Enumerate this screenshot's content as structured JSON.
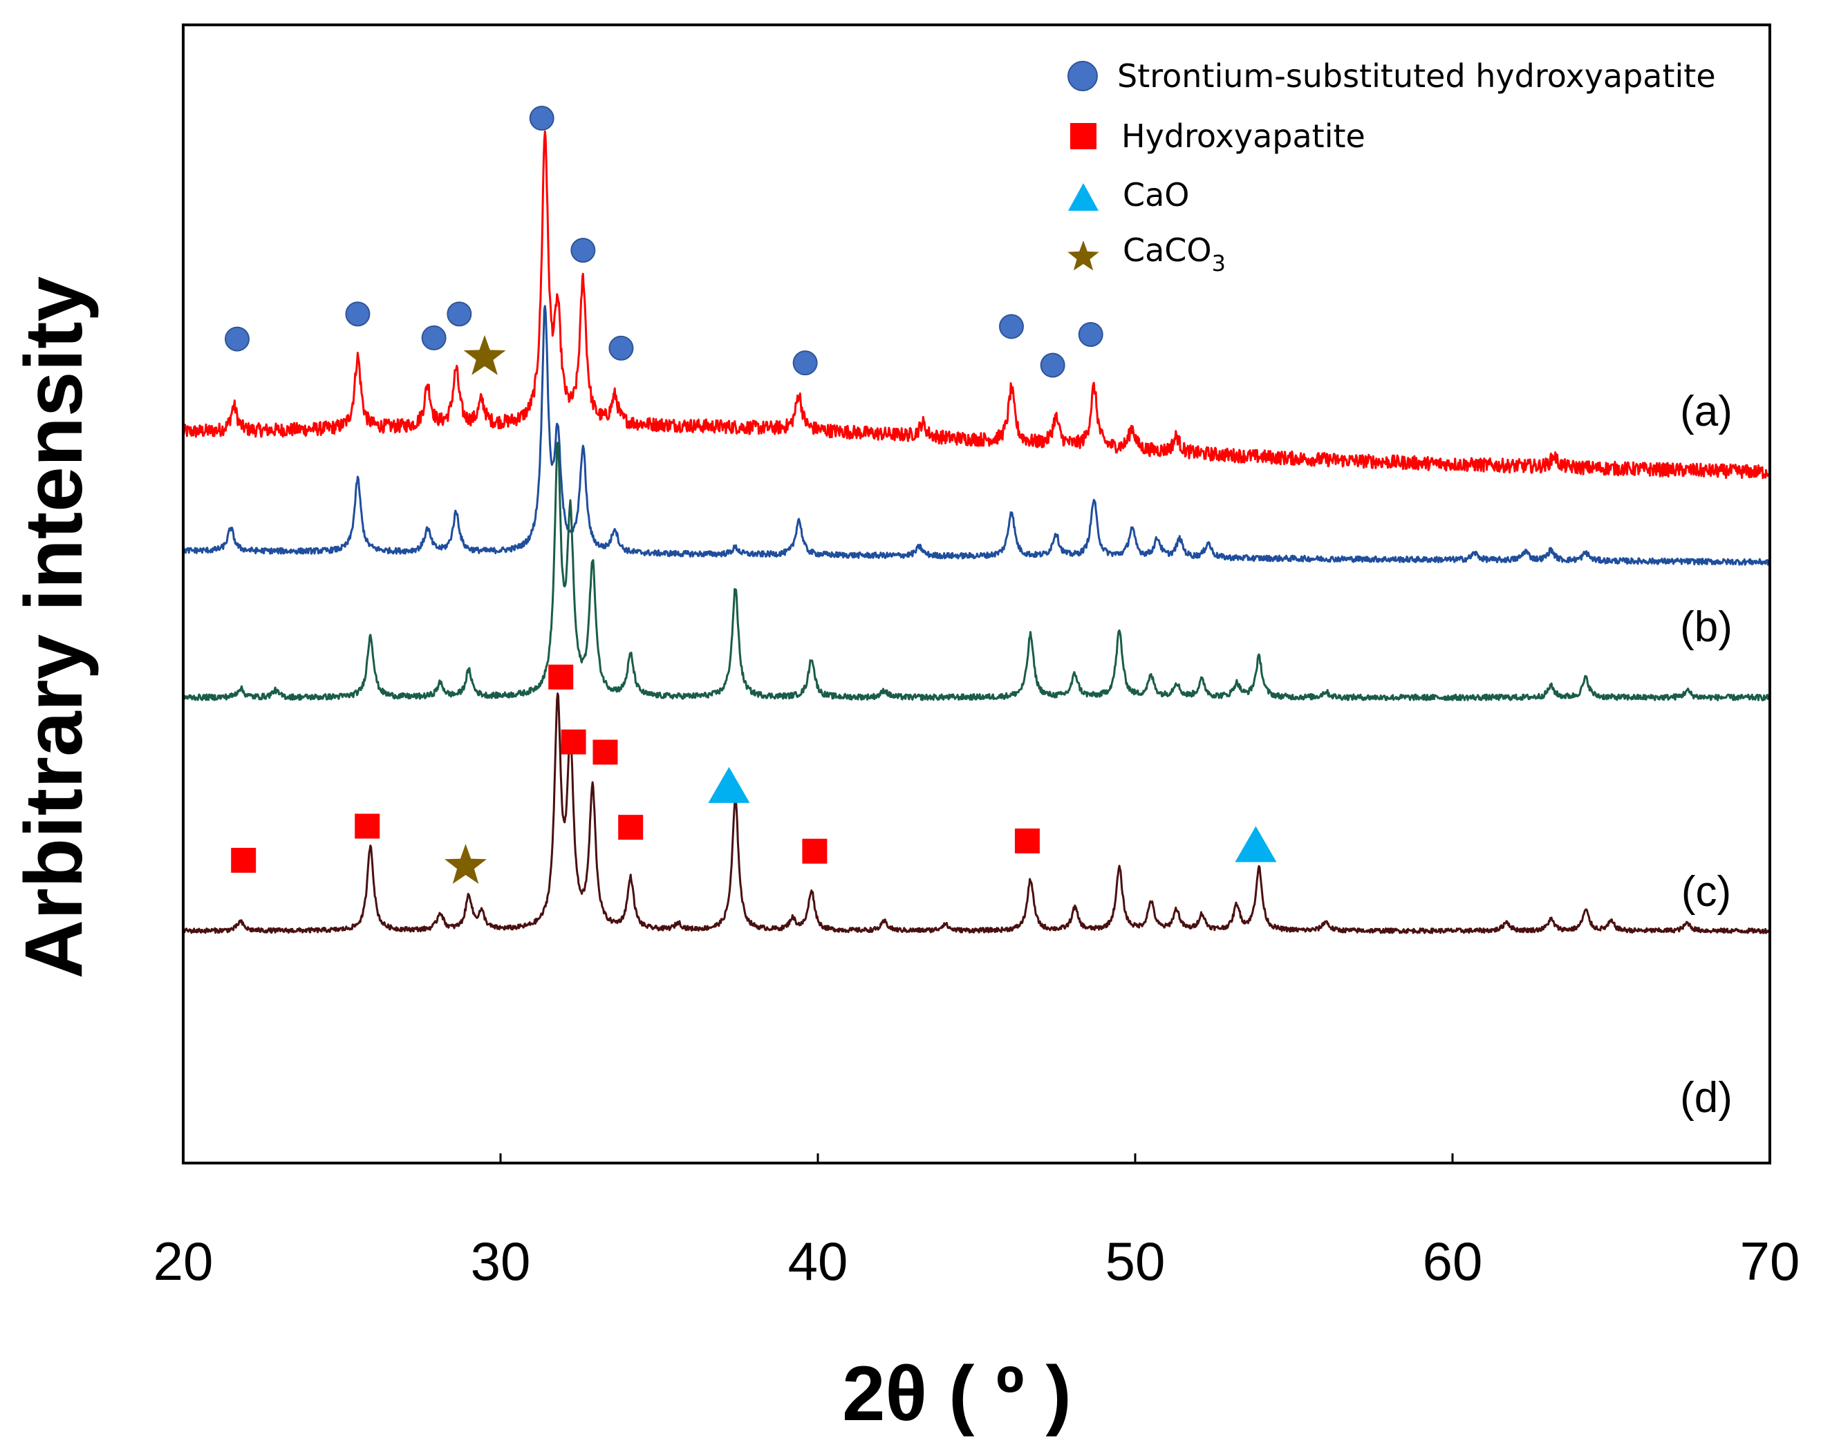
{
  "chart_data": {
    "type": "line",
    "title": "",
    "xlabel": "2θ ( º )",
    "ylabel": "Arbitrary intensity",
    "xlim": [
      20,
      70
    ],
    "xticks": [
      20,
      30,
      40,
      50,
      60,
      70
    ],
    "ylim": [
      0,
      1
    ],
    "grid": false,
    "legend_position": "top-right",
    "legend": [
      {
        "marker": "circle",
        "color": "#4472c4",
        "label": "Strontium-substituted hydroxyapatite"
      },
      {
        "marker": "square",
        "color": "#ff0000",
        "label": "Hydroxyapatite"
      },
      {
        "marker": "triangle",
        "color": "#00b0f0",
        "label": "CaO"
      },
      {
        "marker": "star",
        "color": "#7f6000",
        "label": "CaCO",
        "label_sub": "3"
      }
    ],
    "series": [
      {
        "name": "(a)",
        "color": "#ff0000",
        "baseline": 0.637,
        "slope": -0.0006,
        "noise": 0.006,
        "hump": {
          "center": 36,
          "width": 14,
          "height": 0.02
        },
        "peaks": [
          [
            21.6,
            0.022
          ],
          [
            25.5,
            0.063
          ],
          [
            27.7,
            0.036
          ],
          [
            28.6,
            0.049
          ],
          [
            29.4,
            0.021
          ],
          [
            31.4,
            0.25
          ],
          [
            31.8,
            0.09
          ],
          [
            32.6,
            0.125
          ],
          [
            33.6,
            0.024
          ],
          [
            39.4,
            0.031
          ],
          [
            43.3,
            0.012
          ],
          [
            46.1,
            0.047
          ],
          [
            47.5,
            0.024
          ],
          [
            48.7,
            0.053
          ],
          [
            49.9,
            0.019
          ],
          [
            51.3,
            0.014
          ],
          [
            63.2,
            0.01
          ]
        ]
      },
      {
        "name": "(b)",
        "color": "#1f4e9c",
        "baseline": 0.538,
        "slope": -0.0002,
        "noise": 0.0025,
        "peaks": [
          [
            21.5,
            0.02
          ],
          [
            25.5,
            0.064
          ],
          [
            27.7,
            0.02
          ],
          [
            28.6,
            0.035
          ],
          [
            31.4,
            0.21
          ],
          [
            31.8,
            0.095
          ],
          [
            32.6,
            0.09
          ],
          [
            33.6,
            0.02
          ],
          [
            37.4,
            0.006
          ],
          [
            39.4,
            0.031
          ],
          [
            43.2,
            0.008
          ],
          [
            46.1,
            0.04
          ],
          [
            47.5,
            0.02
          ],
          [
            48.7,
            0.05
          ],
          [
            49.9,
            0.025
          ],
          [
            50.7,
            0.016
          ],
          [
            51.4,
            0.016
          ],
          [
            52.3,
            0.013
          ],
          [
            60.7,
            0.006
          ],
          [
            62.3,
            0.008
          ],
          [
            63.1,
            0.009
          ],
          [
            64.2,
            0.007
          ]
        ]
      },
      {
        "name": "(c)",
        "color": "#1a5c4a",
        "baseline": 0.409,
        "slope": 0.0,
        "noise": 0.0025,
        "peaks": [
          [
            21.8,
            0.008
          ],
          [
            22.9,
            0.006
          ],
          [
            25.9,
            0.055
          ],
          [
            28.1,
            0.012
          ],
          [
            29.0,
            0.023
          ],
          [
            31.8,
            0.21
          ],
          [
            32.2,
            0.15
          ],
          [
            32.9,
            0.115
          ],
          [
            34.1,
            0.036
          ],
          [
            37.4,
            0.095
          ],
          [
            39.8,
            0.034
          ],
          [
            42.1,
            0.006
          ],
          [
            46.7,
            0.055
          ],
          [
            48.1,
            0.02
          ],
          [
            49.5,
            0.058
          ],
          [
            50.5,
            0.018
          ],
          [
            51.3,
            0.012
          ],
          [
            52.1,
            0.015
          ],
          [
            53.2,
            0.012
          ],
          [
            53.9,
            0.035
          ],
          [
            56.0,
            0.005
          ],
          [
            63.1,
            0.01
          ],
          [
            64.2,
            0.017
          ],
          [
            67.4,
            0.006
          ]
        ]
      },
      {
        "name": "(d)",
        "color": "#4a1010",
        "baseline": 0.204,
        "slope": 0.0,
        "noise": 0.002,
        "peaks": [
          [
            21.8,
            0.008
          ],
          [
            25.9,
            0.075
          ],
          [
            28.1,
            0.015
          ],
          [
            29.0,
            0.03
          ],
          [
            29.4,
            0.015
          ],
          [
            31.8,
            0.195
          ],
          [
            32.2,
            0.155
          ],
          [
            32.9,
            0.122
          ],
          [
            34.1,
            0.045
          ],
          [
            35.6,
            0.006
          ],
          [
            37.4,
            0.115
          ],
          [
            39.2,
            0.01
          ],
          [
            39.8,
            0.035
          ],
          [
            42.1,
            0.008
          ],
          [
            44.0,
            0.006
          ],
          [
            46.7,
            0.045
          ],
          [
            48.1,
            0.02
          ],
          [
            49.5,
            0.055
          ],
          [
            50.5,
            0.025
          ],
          [
            51.3,
            0.018
          ],
          [
            52.1,
            0.014
          ],
          [
            53.2,
            0.022
          ],
          [
            53.9,
            0.055
          ],
          [
            56.0,
            0.008
          ],
          [
            61.7,
            0.008
          ],
          [
            63.1,
            0.01
          ],
          [
            64.2,
            0.018
          ],
          [
            65.0,
            0.008
          ],
          [
            67.4,
            0.007
          ]
        ]
      }
    ],
    "phase_markers": [
      {
        "type": "circle",
        "color": "#4472c4",
        "x": 21.7,
        "y": 0.724
      },
      {
        "type": "circle",
        "color": "#4472c4",
        "x": 25.5,
        "y": 0.746
      },
      {
        "type": "circle",
        "color": "#4472c4",
        "x": 27.9,
        "y": 0.725
      },
      {
        "type": "circle",
        "color": "#4472c4",
        "x": 28.7,
        "y": 0.746
      },
      {
        "type": "circle",
        "color": "#4472c4",
        "x": 31.3,
        "y": 0.918
      },
      {
        "type": "circle",
        "color": "#4472c4",
        "x": 32.6,
        "y": 0.802
      },
      {
        "type": "circle",
        "color": "#4472c4",
        "x": 33.8,
        "y": 0.716
      },
      {
        "type": "circle",
        "color": "#4472c4",
        "x": 39.6,
        "y": 0.703
      },
      {
        "type": "circle",
        "color": "#4472c4",
        "x": 46.1,
        "y": 0.735
      },
      {
        "type": "circle",
        "color": "#4472c4",
        "x": 47.4,
        "y": 0.701
      },
      {
        "type": "circle",
        "color": "#4472c4",
        "x": 48.6,
        "y": 0.728
      },
      {
        "type": "star",
        "color": "#7f6000",
        "x": 29.5,
        "y": 0.708
      },
      {
        "type": "square",
        "color": "#ff0000",
        "x": 21.9,
        "y": 0.266
      },
      {
        "type": "square",
        "color": "#ff0000",
        "x": 25.8,
        "y": 0.296
      },
      {
        "type": "square",
        "color": "#ff0000",
        "x": 31.9,
        "y": 0.427
      },
      {
        "type": "square",
        "color": "#ff0000",
        "x": 32.3,
        "y": 0.37
      },
      {
        "type": "square",
        "color": "#ff0000",
        "x": 33.3,
        "y": 0.361
      },
      {
        "type": "square",
        "color": "#ff0000",
        "x": 34.1,
        "y": 0.295
      },
      {
        "type": "square",
        "color": "#ff0000",
        "x": 39.9,
        "y": 0.274
      },
      {
        "type": "square",
        "color": "#ff0000",
        "x": 46.6,
        "y": 0.283
      },
      {
        "type": "triangle",
        "color": "#00b0f0",
        "x": 37.2,
        "y": 0.331
      },
      {
        "type": "triangle",
        "color": "#00b0f0",
        "x": 53.8,
        "y": 0.279
      },
      {
        "type": "star",
        "color": "#7f6000",
        "x": 28.9,
        "y": 0.261
      }
    ]
  }
}
